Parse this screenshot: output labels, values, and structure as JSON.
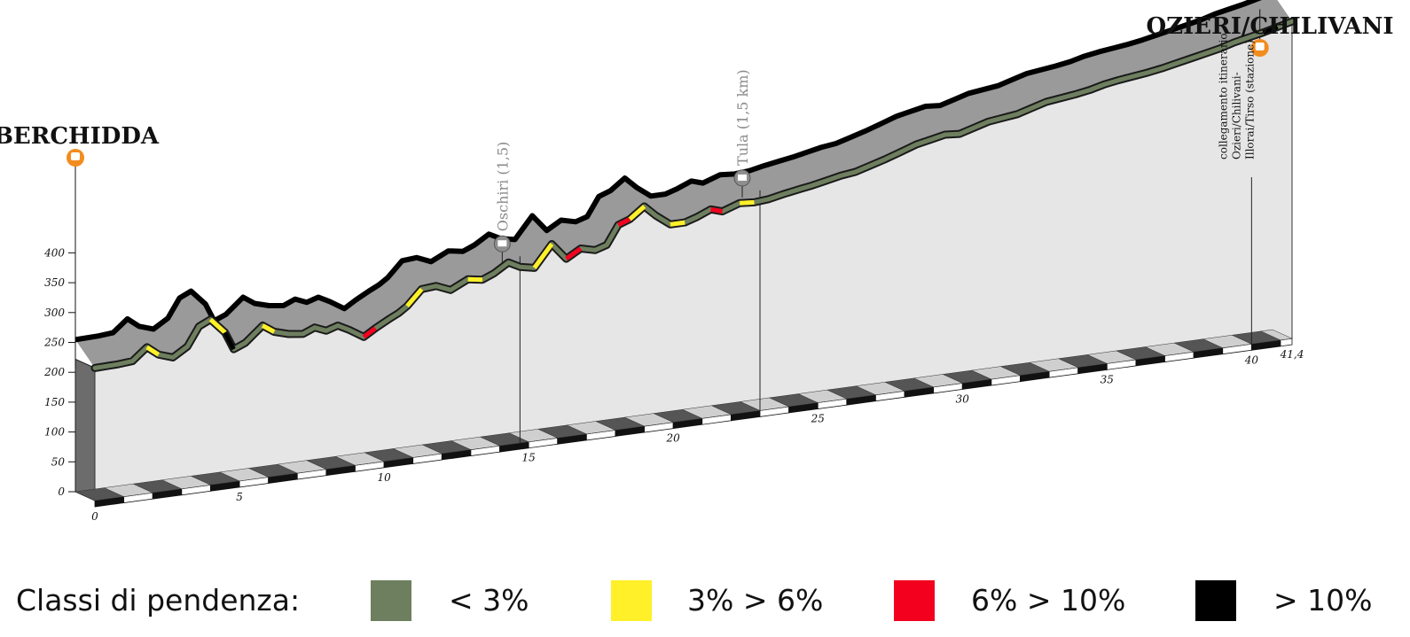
{
  "chart_data": {
    "type": "area",
    "title": "",
    "xlabel": "",
    "ylabel": "",
    "xlim": [
      0,
      41.4
    ],
    "ylim": [
      0,
      400
    ],
    "y_ticks": [
      "0",
      "50",
      "100",
      "150",
      "200",
      "250",
      "300",
      "350",
      "400"
    ],
    "x_ticks": [
      {
        "value": 0,
        "label": "0"
      },
      {
        "value": 5,
        "label": "5"
      },
      {
        "value": 10,
        "label": "10"
      },
      {
        "value": 15,
        "label": "15"
      },
      {
        "value": 20,
        "label": "20"
      },
      {
        "value": 25,
        "label": "25"
      },
      {
        "value": 30,
        "label": "30"
      },
      {
        "value": 35,
        "label": "35"
      },
      {
        "value": 40,
        "label": "40"
      },
      {
        "value": 41.4,
        "label": "41,4"
      }
    ],
    "grid": false,
    "profile": {
      "x": [
        0,
        0.8,
        1.3,
        1.8,
        2.2,
        2.7,
        3.2,
        3.6,
        4.0,
        4.5,
        4.8,
        5.2,
        5.8,
        6.2,
        6.7,
        7.2,
        7.6,
        8.0,
        8.4,
        8.8,
        9.3,
        9.7,
        10.2,
        10.5,
        10.8,
        11.3,
        11.8,
        12.3,
        12.9,
        13.4,
        13.8,
        14.3,
        14.7,
        15.2,
        15.8,
        16.3,
        16.8,
        17.3,
        17.7,
        18.1,
        18.5,
        19.0,
        19.4,
        19.9,
        20.4,
        20.8,
        21.3,
        21.7,
        22.3,
        22.8,
        23.3,
        23.8,
        24.4,
        24.8,
        25.3,
        25.8,
        26.3,
        26.8,
        27.3,
        27.8,
        28.4,
        28.9,
        29.4,
        29.9,
        30.4,
        30.9,
        31.4,
        31.9,
        32.4,
        32.9,
        33.4,
        33.9,
        34.4,
        34.9,
        35.4,
        35.9,
        36.4,
        36.9,
        37.4,
        37.9,
        38.4,
        38.9,
        39.4,
        39.9,
        40.4,
        40.9,
        41.4
      ],
      "elevation": [
        222,
        223,
        225,
        245,
        230,
        222,
        237,
        268,
        277,
        252,
        222,
        230,
        255,
        242,
        235,
        232,
        240,
        232,
        238,
        228,
        213,
        225,
        238,
        245,
        255,
        280,
        282,
        272,
        286,
        282,
        290,
        305,
        295,
        290,
        326,
        298,
        312,
        306,
        312,
        343,
        350,
        368,
        350,
        332,
        332,
        338,
        348,
        342,
        352,
        350,
        352,
        357,
        362,
        365,
        370,
        375,
        378,
        385,
        392,
        400,
        410,
        415,
        420,
        418,
        425,
        432,
        435,
        438,
        445,
        452,
        455,
        458,
        462,
        468,
        472,
        475,
        478,
        482,
        487,
        492,
        497,
        502,
        509,
        514,
        519,
        525,
        531
      ],
      "x_unit": "km",
      "y_unit": "m"
    },
    "places": [
      {
        "name": "BERCHIDDA",
        "km": 0
      },
      {
        "name": "OZIERI/CHILIVANI",
        "km": 40.9
      }
    ],
    "annotations": [
      {
        "text": "Oschiri (1,5)",
        "km": 14.7
      },
      {
        "text": "Tula (1,5 km)",
        "km": 23.0
      },
      {
        "text_lines": [
          "collegamento itinerario",
          "Ozieri/Chilivani-",
          "Illorai/Tirso (stazione)"
        ],
        "km": 40.0
      }
    ],
    "slope_classes": [
      {
        "label": "< 3%",
        "color": "#6e7f5f"
      },
      {
        "label": "3% > 6%",
        "color": "#fff02a"
      },
      {
        "label": "6% > 10%",
        "color": "#f2001e"
      },
      {
        "label": "> 10%",
        "color": "#000000"
      }
    ],
    "steep_segments": [
      {
        "from_km": 1.8,
        "to_km": 2.2,
        "class": 1
      },
      {
        "from_km": 4.0,
        "to_km": 4.5,
        "class": 1
      },
      {
        "from_km": 4.5,
        "to_km": 4.8,
        "class": 3
      },
      {
        "from_km": 5.8,
        "to_km": 6.2,
        "class": 1
      },
      {
        "from_km": 9.3,
        "to_km": 9.7,
        "class": 2
      },
      {
        "from_km": 10.8,
        "to_km": 11.3,
        "class": 1
      },
      {
        "from_km": 12.9,
        "to_km": 13.4,
        "class": 1
      },
      {
        "from_km": 15.2,
        "to_km": 15.8,
        "class": 1
      },
      {
        "from_km": 16.3,
        "to_km": 16.8,
        "class": 2
      },
      {
        "from_km": 18.1,
        "to_km": 18.5,
        "class": 2
      },
      {
        "from_km": 18.5,
        "to_km": 19.0,
        "class": 1
      },
      {
        "from_km": 19.9,
        "to_km": 20.4,
        "class": 1
      },
      {
        "from_km": 21.3,
        "to_km": 21.7,
        "class": 2
      },
      {
        "from_km": 22.3,
        "to_km": 22.8,
        "class": 1
      },
      {
        "from_km": 40.4,
        "to_km": 40.9,
        "class": 3
      }
    ]
  },
  "legend": {
    "title": "Classi di pendenza:",
    "items": [
      {
        "label": "< 3%",
        "color": "#6e7f5f"
      },
      {
        "label": "3% > 6%",
        "color": "#fff02a"
      },
      {
        "label": "6% > 10%",
        "color": "#f2001e"
      },
      {
        "label": "> 10%",
        "color": "#000000"
      }
    ]
  }
}
